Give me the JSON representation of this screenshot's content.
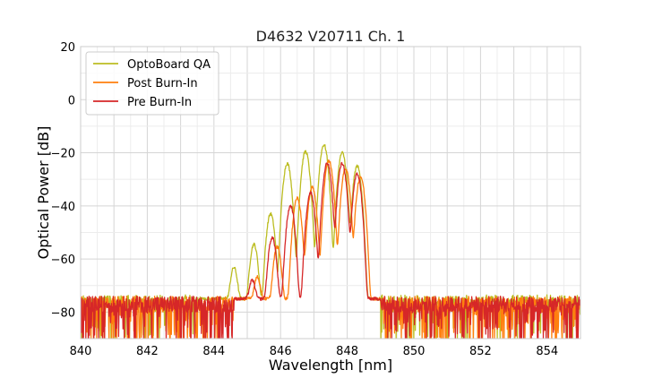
{
  "chart_data": {
    "type": "line",
    "title": "D4632 V20711 Ch. 1",
    "xlabel": "Wavelength [nm]",
    "ylabel": "Optical Power [dB]",
    "xlim": [
      840,
      855
    ],
    "ylim": [
      -90,
      20
    ],
    "xticks": [
      840,
      842,
      844,
      846,
      848,
      850,
      852,
      854
    ],
    "yticks": [
      -80,
      -60,
      -40,
      -20,
      0,
      20
    ],
    "grid": true,
    "legend_position": "top-left",
    "noise_floor_db": -77,
    "series": [
      {
        "name": "OptoBoard QA",
        "color": "#bcbd22",
        "peaks": [
          {
            "x": 844.6,
            "y": -63.5
          },
          {
            "x": 845.2,
            "y": -54.5
          },
          {
            "x": 845.7,
            "y": -43
          },
          {
            "x": 846.2,
            "y": -24
          },
          {
            "x": 846.75,
            "y": -19.5
          },
          {
            "x": 847.3,
            "y": -17
          },
          {
            "x": 847.85,
            "y": -20
          },
          {
            "x": 848.3,
            "y": -25
          }
        ],
        "band": [
          843.6,
          849.0
        ]
      },
      {
        "name": "Post Burn-In",
        "color": "#ff7f0e",
        "peaks": [
          {
            "x": 845.3,
            "y": -67.5
          },
          {
            "x": 845.9,
            "y": -55.5
          },
          {
            "x": 846.5,
            "y": -37
          },
          {
            "x": 846.95,
            "y": -33
          },
          {
            "x": 847.45,
            "y": -23
          },
          {
            "x": 847.95,
            "y": -26
          },
          {
            "x": 848.4,
            "y": -29
          }
        ],
        "band": [
          844.6,
          849.0
        ]
      },
      {
        "name": "Pre Burn-In",
        "color": "#d62728",
        "peaks": [
          {
            "x": 845.15,
            "y": -69
          },
          {
            "x": 845.75,
            "y": -52
          },
          {
            "x": 846.3,
            "y": -40
          },
          {
            "x": 846.9,
            "y": -35
          },
          {
            "x": 847.4,
            "y": -24
          },
          {
            "x": 847.85,
            "y": -24
          },
          {
            "x": 848.3,
            "y": -28
          }
        ],
        "band": [
          844.6,
          849.0
        ]
      }
    ]
  }
}
